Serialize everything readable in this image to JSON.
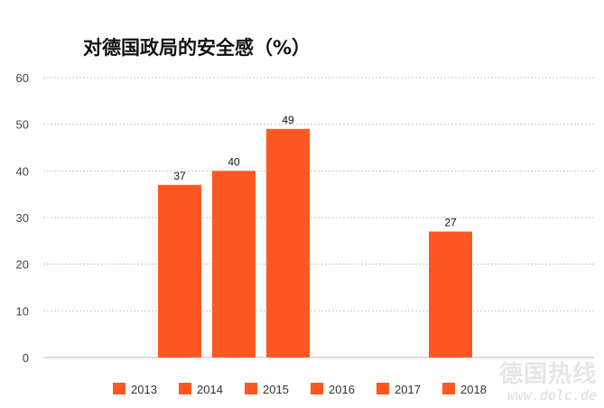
{
  "chart_data": {
    "type": "bar",
    "title": "对德国政局的安全感（%）",
    "categories": [
      "2013",
      "2014",
      "2015",
      "2016",
      "2017",
      "2018"
    ],
    "series": [
      {
        "values": [
          37,
          40,
          49,
          null,
          null,
          27
        ]
      }
    ],
    "data_labels": [
      "37",
      "40",
      "49",
      "",
      "",
      "27"
    ],
    "ylim": [
      0,
      60
    ],
    "yticks": [
      0,
      10,
      20,
      30,
      40,
      50,
      60
    ],
    "xlabel": "",
    "ylabel": "",
    "grid": true,
    "legend": "bottom",
    "legend_entries": [
      "2013",
      "2014",
      "2015",
      "2016",
      "2017",
      "2018"
    ],
    "bar_color": "#ff5722"
  },
  "watermark": {
    "name": "德国热线",
    "url": "www.dolc.de"
  }
}
